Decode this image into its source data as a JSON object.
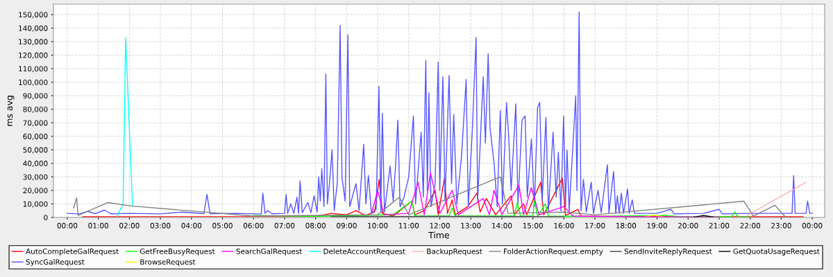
{
  "chart_data": {
    "type": "line",
    "xlabel": "Time",
    "ylabel": "ms avg",
    "xlim": [
      -0.45,
      24.4
    ],
    "ylim": [
      0,
      157700
    ],
    "xticks": [
      {
        "value": 0,
        "label": "00:00"
      },
      {
        "value": 1,
        "label": "01:00"
      },
      {
        "value": 2,
        "label": "02:00"
      },
      {
        "value": 3,
        "label": "03:00"
      },
      {
        "value": 4,
        "label": "04:00"
      },
      {
        "value": 5,
        "label": "05:00"
      },
      {
        "value": 6,
        "label": "06:00"
      },
      {
        "value": 7,
        "label": "07:00"
      },
      {
        "value": 8,
        "label": "08:00"
      },
      {
        "value": 9,
        "label": "09:00"
      },
      {
        "value": 10,
        "label": "10:00"
      },
      {
        "value": 11,
        "label": "11:00"
      },
      {
        "value": 12,
        "label": "12:00"
      },
      {
        "value": 13,
        "label": "13:00"
      },
      {
        "value": 14,
        "label": "14:00"
      },
      {
        "value": 15,
        "label": "15:00"
      },
      {
        "value": 16,
        "label": "16:00"
      },
      {
        "value": 17,
        "label": "17:00"
      },
      {
        "value": 18,
        "label": "18:00"
      },
      {
        "value": 19,
        "label": "19:00"
      },
      {
        "value": 20,
        "label": "20:00"
      },
      {
        "value": 21,
        "label": "21:00"
      },
      {
        "value": 22,
        "label": "22:00"
      },
      {
        "value": 23,
        "label": "23:00"
      },
      {
        "value": 24,
        "label": "00:00"
      }
    ],
    "yticks": [
      0,
      {
        "value": 10000,
        "label": "10,000"
      },
      {
        "value": 20000,
        "label": "20,000"
      },
      {
        "value": 30000,
        "label": "30,000"
      },
      {
        "value": 40000,
        "label": "40,000"
      },
      {
        "value": 50000,
        "label": "50,000"
      },
      {
        "value": 60000,
        "label": "60,000"
      },
      {
        "value": 70000,
        "label": "70,000"
      },
      {
        "value": 80000,
        "label": "80,000"
      },
      {
        "value": 90000,
        "label": "90,000"
      },
      {
        "value": 100000,
        "label": "100,000"
      },
      {
        "value": 110000,
        "label": "110,000"
      },
      {
        "value": 120000,
        "label": "120,000"
      },
      {
        "value": 130000,
        "label": "130,000"
      },
      {
        "value": 140000,
        "label": "140,000"
      },
      {
        "value": 150000,
        "label": "150,000"
      }
    ],
    "grid": true,
    "legend": "bottom",
    "line_style": "solid",
    "marker": "none",
    "series": [
      {
        "name": "AutoCompleteGalRequest",
        "color": "#ff0000",
        "x": [
          0.5,
          8.0,
          8.5,
          9.0,
          9.3,
          9.6,
          9.9,
          10.05,
          10.15,
          10.5,
          11.1,
          11.2,
          11.5,
          11.85,
          11.95,
          12.15,
          12.25,
          12.4,
          12.5,
          12.9,
          13.2,
          13.3,
          13.5,
          13.8,
          14.3,
          14.4,
          14.7,
          14.8,
          15.25,
          15.35,
          15.95,
          16.05,
          16.45,
          16.55,
          17.5,
          20.0,
          23.7
        ],
        "values": [
          500,
          700,
          3000,
          2000,
          5000,
          1500,
          4000,
          28000,
          3000,
          1000,
          12000,
          2000,
          5000,
          20000,
          2000,
          29000,
          3000,
          13000,
          2000,
          8000,
          18000,
          4000,
          14000,
          2000,
          16000,
          2000,
          10000,
          2000,
          26000,
          2000,
          29000,
          1500,
          6000,
          1000,
          800,
          500,
          500
        ]
      },
      {
        "name": "SyncGalRequest",
        "color": "#5555ff",
        "x": [
          0.0,
          0.4,
          0.65,
          0.9,
          1.2,
          1.4,
          2.0,
          3.0,
          3.7,
          4.4,
          4.5,
          4.6,
          5.5,
          6.25,
          6.3,
          6.37,
          6.45,
          6.6,
          7.0,
          7.05,
          7.1,
          7.2,
          7.3,
          7.4,
          7.45,
          7.5,
          7.57,
          7.75,
          7.85,
          7.95,
          8.05,
          8.1,
          8.15,
          8.2,
          8.27,
          8.33,
          8.38,
          8.45,
          8.53,
          8.6,
          8.7,
          8.79,
          8.85,
          8.95,
          9.04,
          9.1,
          9.3,
          9.4,
          9.55,
          9.62,
          9.7,
          9.8,
          9.95,
          10.04,
          10.1,
          10.15,
          10.22,
          10.4,
          10.5,
          10.58,
          10.65,
          10.72,
          10.85,
          11.0,
          11.15,
          11.22,
          11.4,
          11.47,
          11.55,
          11.6,
          11.65,
          11.72,
          11.85,
          11.95,
          12.0,
          12.1,
          12.17,
          12.3,
          12.38,
          12.45,
          12.55,
          12.7,
          12.85,
          12.92,
          13.05,
          13.17,
          13.22,
          13.4,
          13.47,
          13.56,
          13.62,
          13.75,
          13.85,
          13.95,
          14.02,
          14.15,
          14.22,
          14.3,
          14.45,
          14.52,
          14.65,
          14.75,
          14.82,
          14.95,
          15.05,
          15.15,
          15.22,
          15.3,
          15.42,
          15.5,
          15.65,
          15.75,
          15.82,
          15.9,
          15.99,
          16.05,
          16.1,
          16.17,
          16.38,
          16.42,
          16.49,
          16.55,
          16.63,
          16.72,
          16.88,
          16.95,
          17.1,
          17.2,
          17.4,
          17.45,
          17.6,
          17.67,
          17.72,
          17.78,
          17.85,
          17.92,
          18.05,
          18.1,
          18.2,
          18.27,
          19.0,
          19.45,
          19.55,
          20.5,
          21.0,
          21.1,
          22.0,
          23.35,
          23.4,
          23.45,
          23.8,
          23.85,
          23.92,
          24.0
        ],
        "values": [
          3000,
          2600,
          4500,
          2800,
          5500,
          2700,
          3000,
          2600,
          4000,
          2800,
          17000,
          2800,
          3000,
          2500,
          18000,
          3000,
          5000,
          2700,
          3000,
          17000,
          3000,
          10000,
          3000,
          15000,
          3000,
          27000,
          3500,
          11000,
          3500,
          16000,
          4000,
          30000,
          12000,
          36000,
          8000,
          106000,
          10000,
          26000,
          50000,
          5000,
          26000,
          142000,
          30000,
          12000,
          135000,
          8000,
          25000,
          5000,
          54000,
          10000,
          31000,
          3000,
          6000,
          97000,
          5000,
          77000,
          4000,
          38000,
          12000,
          40000,
          72000,
          8000,
          15000,
          30000,
          75000,
          10000,
          63000,
          15000,
          116000,
          20000,
          92000,
          8000,
          25000,
          115000,
          20000,
          104000,
          12000,
          105000,
          25000,
          76000,
          10000,
          45000,
          102000,
          8000,
          65000,
          133000,
          12000,
          104000,
          55000,
          121000,
          66000,
          40000,
          8000,
          79000,
          10000,
          85000,
          60000,
          20000,
          84000,
          10000,
          72000,
          75000,
          15000,
          58000,
          8000,
          81000,
          85000,
          12000,
          74000,
          5000,
          63000,
          15000,
          48000,
          5000,
          75000,
          8000,
          50000,
          5000,
          90000,
          20000,
          152000,
          5000,
          28000,
          4000,
          26000,
          3000,
          20000,
          3500,
          39000,
          3000,
          34000,
          3000,
          16000,
          3000,
          18000,
          3000,
          21000,
          3000,
          13000,
          3000,
          3000,
          6000,
          2700,
          3000,
          6000,
          2700,
          3000,
          3000,
          31000,
          3000,
          3000,
          12000,
          3000,
          3000
        ]
      },
      {
        "name": "GetFreeBusyRequest",
        "color": "#00ff00",
        "x": [
          6.0,
          8.0,
          10.5,
          11.1,
          11.2,
          12.3,
          12.4,
          12.5,
          14.4,
          14.5,
          14.6,
          15.0,
          15.05,
          15.15,
          15.4,
          15.5,
          17.0,
          19.25,
          19.8,
          21.4,
          21.5,
          21.6,
          22.0
        ],
        "values": [
          1500,
          800,
          2000,
          12000,
          1000,
          1000,
          7000,
          1000,
          1000,
          11000,
          1000,
          1000,
          13000,
          1000,
          10000,
          1000,
          800,
          1500,
          500,
          500,
          4000,
          500,
          300
        ]
      },
      {
        "name": "BrowseRequest",
        "color": "#ffff00",
        "x": [
          18.6,
          18.9,
          19.2
        ],
        "values": [
          400,
          1800,
          400
        ]
      },
      {
        "name": "SearchGalRequest",
        "color": "#ff00ff",
        "x": [
          9.8,
          10.0,
          10.2,
          11.0,
          11.3,
          11.5,
          11.7,
          12.0,
          12.4,
          12.6,
          13.4,
          13.6,
          13.75,
          14.0,
          14.55,
          14.7,
          14.95,
          15.2,
          16.0,
          16.3,
          18.0,
          21.0
        ],
        "values": [
          3000,
          20000,
          2000,
          3000,
          26000,
          2000,
          33000,
          3000,
          20000,
          2000,
          14000,
          2000,
          20000,
          2000,
          24000,
          2000,
          22000,
          2000,
          8000,
          1000,
          500,
          300
        ]
      },
      {
        "name": "DeleteAccountRequest",
        "color": "#00ffff",
        "x": [
          1.6,
          1.8,
          1.88,
          2.1
        ],
        "values": [
          1000,
          10000,
          133000,
          9000
        ]
      },
      {
        "name": "BackupRequest",
        "color": "#ffafaf",
        "x": [
          21.9,
          23.8
        ],
        "values": [
          1500,
          26000
        ]
      },
      {
        "name": "FolderActionRequest.empty",
        "color": "#808080",
        "x": [
          0.2,
          0.3,
          0.35,
          1.3,
          2.05,
          6.0,
          10.0,
          10.7,
          11.0,
          13.95,
          14.2,
          16.0,
          17.0,
          21.8,
          22.1,
          22.8,
          23.15
        ],
        "values": [
          7000,
          14500,
          1500,
          11000,
          8500,
          1000,
          2000,
          15000,
          2000,
          30000,
          3000,
          4000,
          2000,
          12000,
          1000,
          9000,
          0
        ]
      },
      {
        "name": "SendInviteReplyRequest",
        "color": "#404040",
        "x": [
          8.5,
          12.0,
          16.0
        ],
        "values": [
          600,
          800,
          600
        ]
      },
      {
        "name": "GetQuotaUsageRequest",
        "color": "#000000",
        "x": [
          20.2,
          20.5,
          20.8
        ],
        "values": [
          300,
          1500,
          300
        ]
      }
    ]
  }
}
